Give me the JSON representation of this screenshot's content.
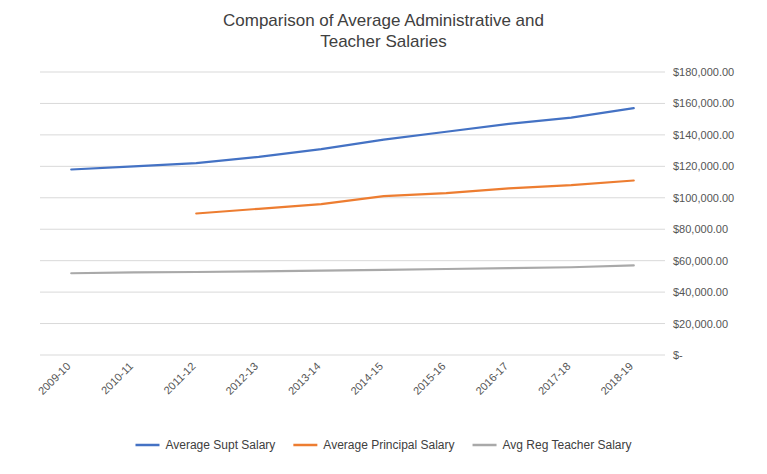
{
  "chart_data": {
    "type": "line",
    "title": "Comparison of Average Administrative and\nTeacher Salaries",
    "categories": [
      "2009-10",
      "2010-11",
      "2011-12",
      "2012-13",
      "2013-14",
      "2014-15",
      "2015-16",
      "2016-17",
      "2017-18",
      "2018-19"
    ],
    "series": [
      {
        "name": "Average Supt Salary",
        "color": "#4472C4",
        "values": [
          118000,
          120000,
          122000,
          126000,
          131000,
          137000,
          142000,
          147000,
          151000,
          157000
        ]
      },
      {
        "name": "Average Principal Salary",
        "color": "#ED7D31",
        "values": [
          null,
          null,
          90000,
          93000,
          96000,
          101000,
          103000,
          106000,
          108000,
          111000
        ]
      },
      {
        "name": "Avg Reg Teacher Salary",
        "color": "#A9A9A9",
        "values": [
          52000,
          52500,
          52800,
          53200,
          53700,
          54200,
          54700,
          55200,
          55800,
          57000
        ]
      }
    ],
    "ylim": [
      0,
      180000
    ],
    "yticks": [
      {
        "value": 0,
        "label": "$-"
      },
      {
        "value": 20000,
        "label": "$20,000.00"
      },
      {
        "value": 40000,
        "label": "$40,000.00"
      },
      {
        "value": 60000,
        "label": "$60,000.00"
      },
      {
        "value": 80000,
        "label": "$80,000.00"
      },
      {
        "value": 100000,
        "label": "$100,000.00"
      },
      {
        "value": 120000,
        "label": "$120,000.00"
      },
      {
        "value": 140000,
        "label": "$140,000.00"
      },
      {
        "value": 160000,
        "label": "$160,000.00"
      },
      {
        "value": 180000,
        "label": "$180,000.00"
      }
    ],
    "grid": true,
    "legend": "bottom"
  }
}
